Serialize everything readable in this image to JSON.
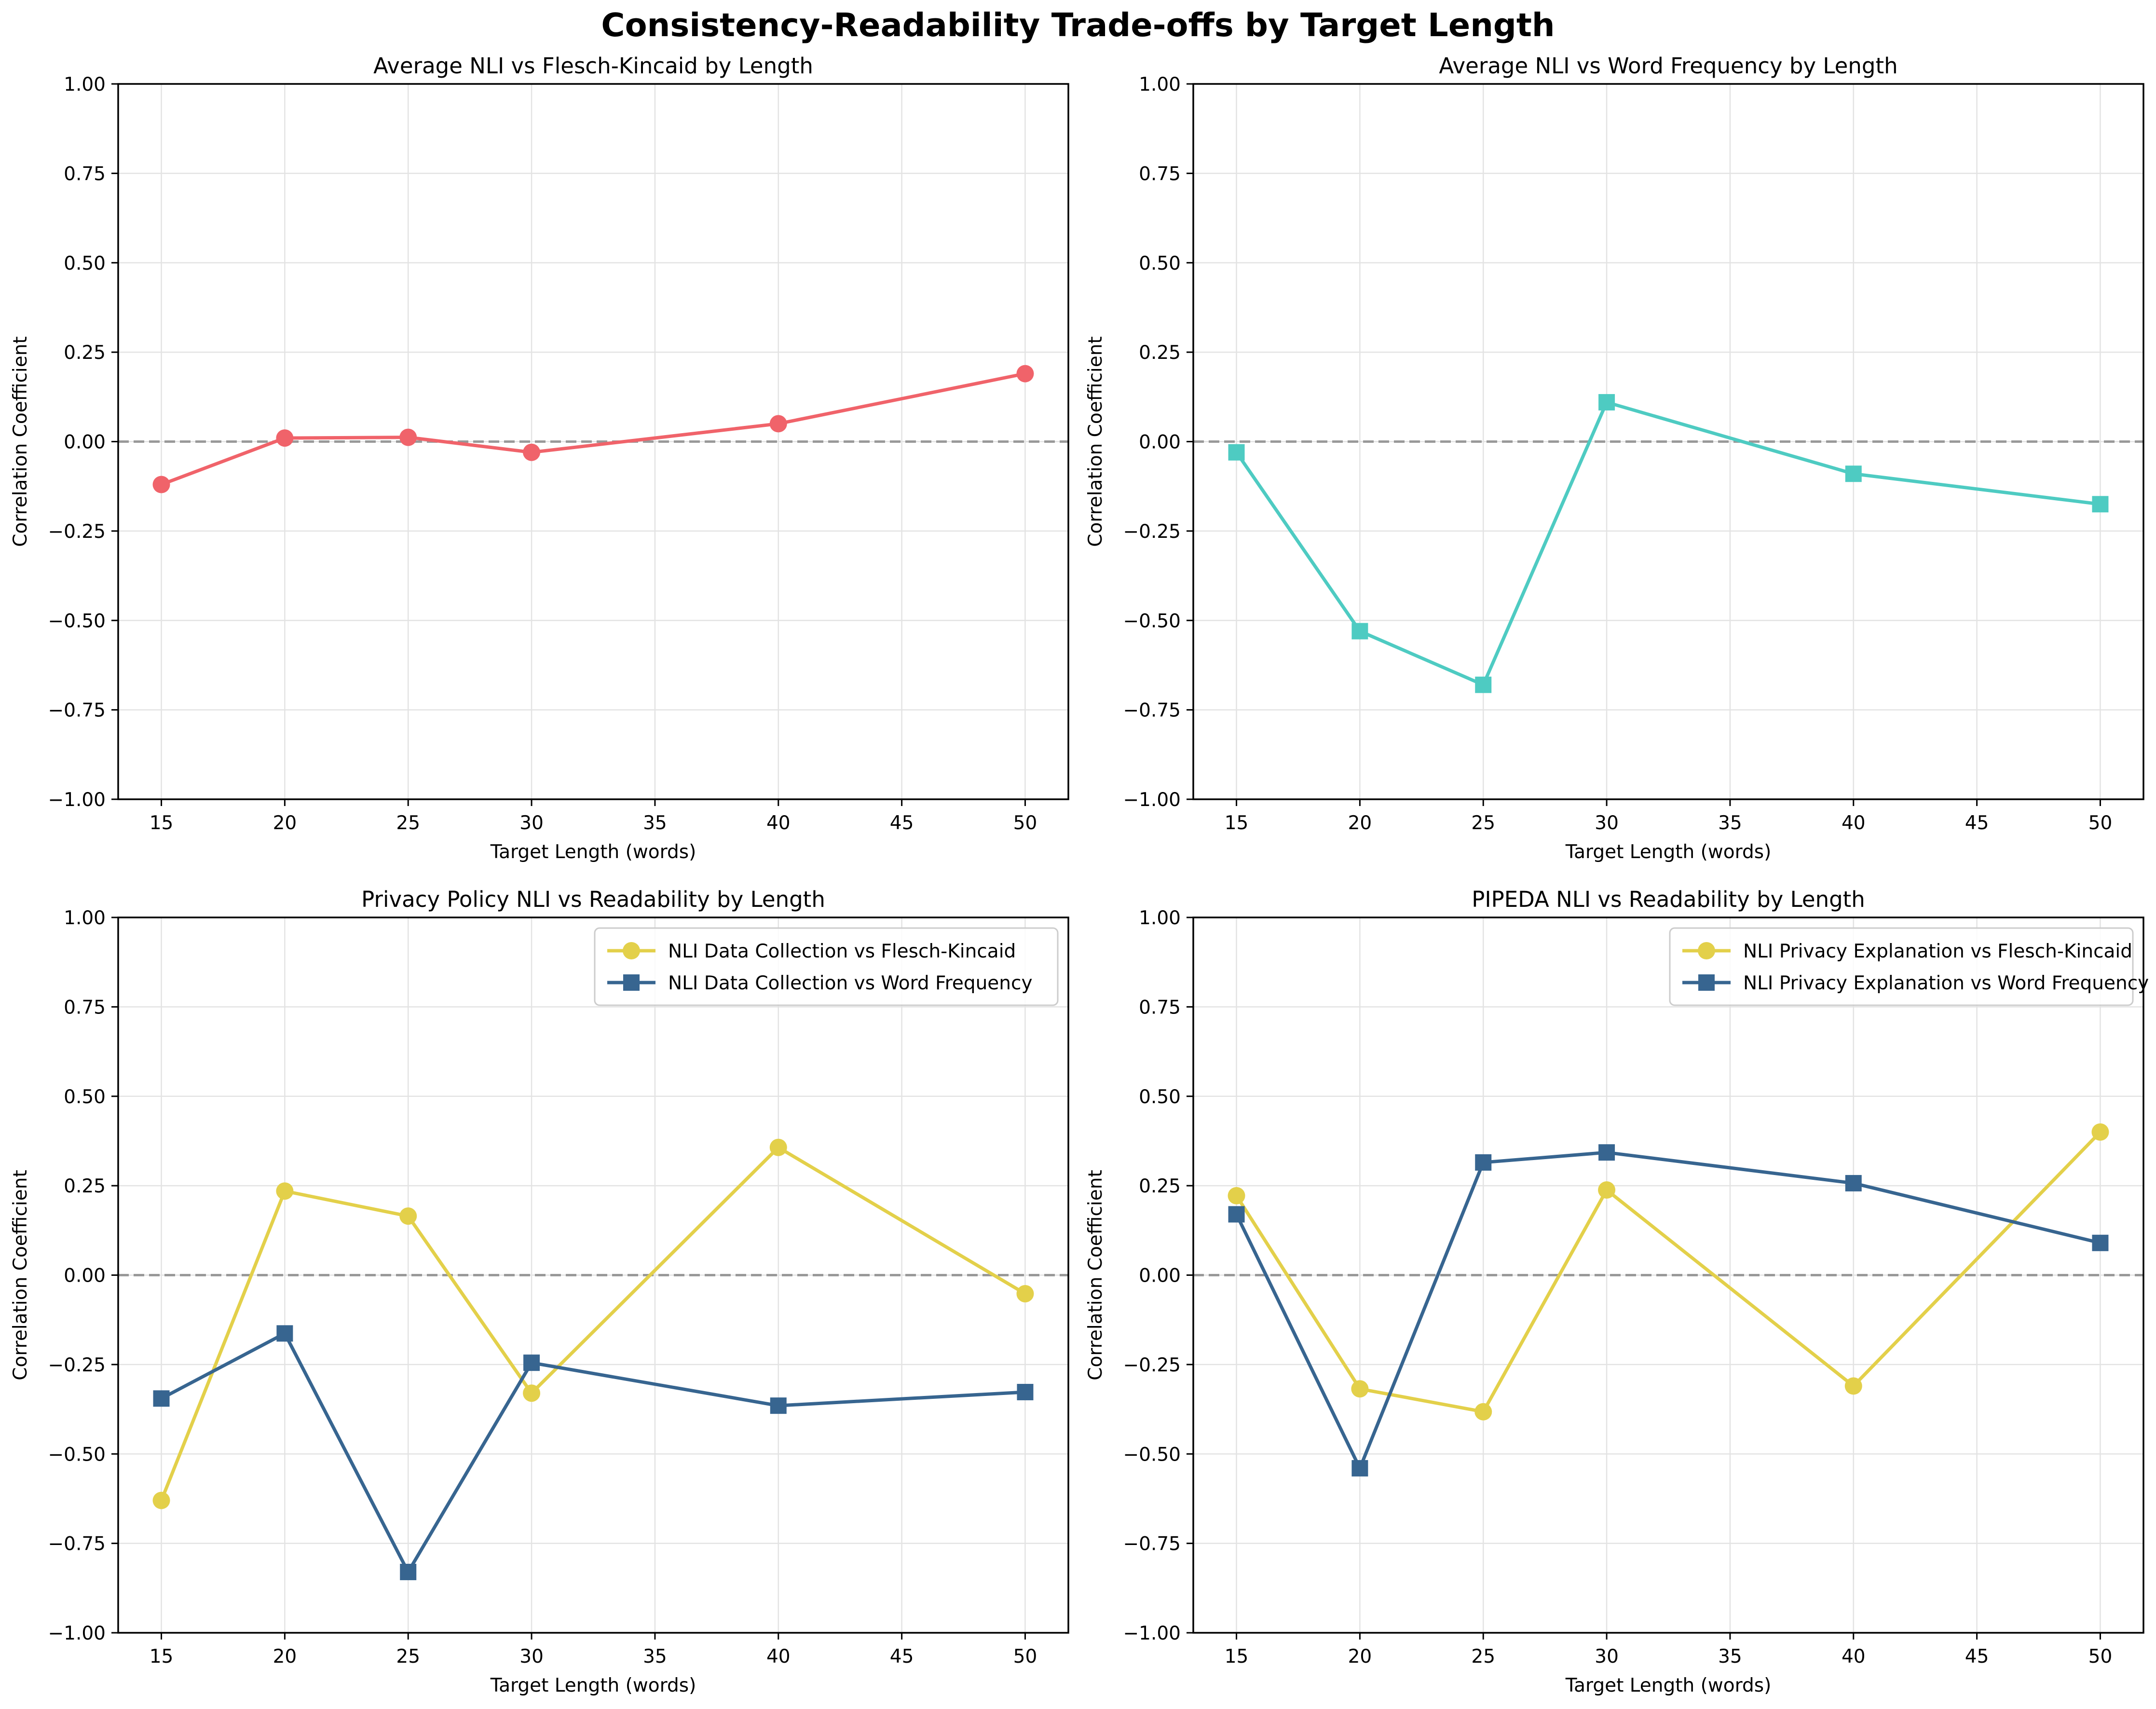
{
  "figure": {
    "suptitle": "Consistency-Readability Trade-offs by Target Length"
  },
  "colors": {
    "red": "#f0636a",
    "teal": "#4ecbc2",
    "yellow": "#e3d04a",
    "blue": "#376590",
    "zero_line": "#999999",
    "grid": "#e3e3e3",
    "axis": "#000000"
  },
  "chart_data": [
    {
      "type": "line",
      "title": "Average NLI vs Flesch-Kincaid by Length",
      "xlabel": "Target Length (words)",
      "ylabel": "Correlation Coefficient",
      "xlim": [
        13.25,
        51.75
      ],
      "ylim": [
        -1.0,
        1.0
      ],
      "xticks": [
        15,
        20,
        25,
        30,
        35,
        40,
        45,
        50
      ],
      "yticks": [
        -1.0,
        -0.75,
        -0.5,
        -0.25,
        0.0,
        0.25,
        0.5,
        0.75,
        1.0
      ],
      "grid": true,
      "zero_line": true,
      "legend": null,
      "series": [
        {
          "color": "#f0636a",
          "marker": "circle",
          "x": [
            15,
            20,
            25,
            30,
            40,
            50
          ],
          "y": [
            -0.12,
            0.01,
            0.012,
            -0.03,
            0.05,
            0.19
          ]
        }
      ]
    },
    {
      "type": "line",
      "title": "Average NLI vs Word Frequency by Length",
      "xlabel": "Target Length (words)",
      "ylabel": "Correlation Coefficient",
      "xlim": [
        13.25,
        51.75
      ],
      "ylim": [
        -1.0,
        1.0
      ],
      "xticks": [
        15,
        20,
        25,
        30,
        35,
        40,
        45,
        50
      ],
      "yticks": [
        -1.0,
        -0.75,
        -0.5,
        -0.25,
        0.0,
        0.25,
        0.5,
        0.75,
        1.0
      ],
      "grid": true,
      "zero_line": true,
      "legend": null,
      "series": [
        {
          "color": "#4ecbc2",
          "marker": "square",
          "x": [
            15,
            20,
            25,
            30,
            40,
            50
          ],
          "y": [
            -0.03,
            -0.53,
            -0.68,
            0.11,
            -0.09,
            -0.175
          ]
        }
      ]
    },
    {
      "type": "line",
      "title": "Privacy Policy NLI vs Readability by Length",
      "xlabel": "Target Length (words)",
      "ylabel": "Correlation Coefficient",
      "xlim": [
        13.25,
        51.75
      ],
      "ylim": [
        -1.0,
        1.0
      ],
      "xticks": [
        15,
        20,
        25,
        30,
        35,
        40,
        45,
        50
      ],
      "yticks": [
        -1.0,
        -0.75,
        -0.5,
        -0.25,
        0.0,
        0.25,
        0.5,
        0.75,
        1.0
      ],
      "grid": true,
      "zero_line": true,
      "legend": "top-right",
      "series": [
        {
          "name": "NLI Data Collection vs Flesch-Kincaid",
          "color": "#e3d04a",
          "marker": "circle",
          "x": [
            15,
            20,
            25,
            30,
            40,
            50
          ],
          "y": [
            -0.63,
            0.235,
            0.165,
            -0.33,
            0.357,
            -0.052
          ]
        },
        {
          "name": "NLI Data Collection vs Word Frequency",
          "color": "#376590",
          "marker": "square",
          "x": [
            15,
            20,
            25,
            30,
            40,
            50
          ],
          "y": [
            -0.345,
            -0.163,
            -0.83,
            -0.245,
            -0.365,
            -0.327
          ]
        }
      ]
    },
    {
      "type": "line",
      "title": "PIPEDA NLI vs Readability by Length",
      "xlabel": "Target Length (words)",
      "ylabel": "Correlation Coefficient",
      "xlim": [
        13.25,
        51.75
      ],
      "ylim": [
        -1.0,
        1.0
      ],
      "xticks": [
        15,
        20,
        25,
        30,
        35,
        40,
        45,
        50
      ],
      "yticks": [
        -1.0,
        -0.75,
        -0.5,
        -0.25,
        0.0,
        0.25,
        0.5,
        0.75,
        1.0
      ],
      "grid": true,
      "zero_line": true,
      "legend": "top-right",
      "series": [
        {
          "name": "NLI Privacy Explanation vs Flesch-Kincaid",
          "color": "#e3d04a",
          "marker": "circle",
          "x": [
            15,
            20,
            25,
            30,
            40,
            50
          ],
          "y": [
            0.222,
            -0.318,
            -0.382,
            0.238,
            -0.31,
            0.4
          ]
        },
        {
          "name": "NLI Privacy Explanation vs Word Frequency",
          "color": "#376590",
          "marker": "square",
          "x": [
            15,
            20,
            25,
            30,
            40,
            50
          ],
          "y": [
            0.17,
            -0.54,
            0.315,
            0.343,
            0.257,
            0.09
          ]
        }
      ]
    }
  ]
}
